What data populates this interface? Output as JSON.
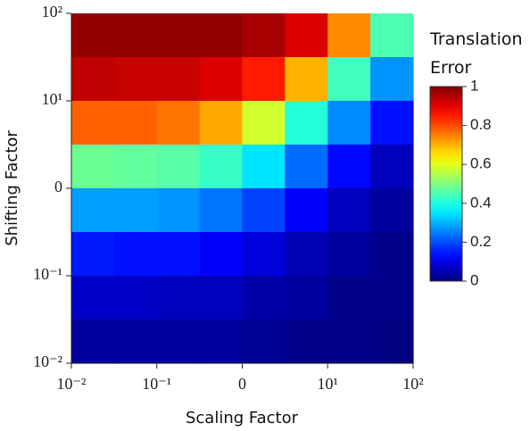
{
  "chart_data": {
    "type": "heatmap",
    "xlabel": "Scaling Factor",
    "ylabel": "Shifting Factor",
    "colorbar_label": "Translation Error",
    "colormap": "jet",
    "x": [
      -1.75,
      -1.25,
      -0.75,
      -0.25,
      0.25,
      0.75,
      1.25,
      1.75
    ],
    "y": [
      1.75,
      1.25,
      0.75,
      0.25,
      -0.25,
      -0.75,
      -1.25,
      -1.75
    ],
    "z": [
      [
        0.98,
        0.98,
        0.98,
        0.98,
        0.96,
        0.91,
        0.74,
        0.45
      ],
      [
        0.94,
        0.93,
        0.93,
        0.91,
        0.85,
        0.7,
        0.44,
        0.27
      ],
      [
        0.78,
        0.78,
        0.76,
        0.71,
        0.58,
        0.41,
        0.26,
        0.14
      ],
      [
        0.48,
        0.47,
        0.46,
        0.43,
        0.35,
        0.23,
        0.13,
        0.06
      ],
      [
        0.28,
        0.28,
        0.27,
        0.24,
        0.19,
        0.12,
        0.06,
        0.03
      ],
      [
        0.15,
        0.14,
        0.14,
        0.12,
        0.09,
        0.05,
        0.03,
        0.01
      ],
      [
        0.07,
        0.07,
        0.06,
        0.06,
        0.04,
        0.03,
        0.01,
        0.01
      ],
      [
        0.03,
        0.03,
        0.03,
        0.03,
        0.02,
        0.01,
        0.01,
        0.0
      ]
    ],
    "xlim": [
      -2,
      2
    ],
    "ylim": [
      -2,
      2
    ],
    "xticks": [
      {
        "value": -2,
        "label": "10⁻²"
      },
      {
        "value": -1,
        "label": "10⁻¹"
      },
      0,
      {
        "value": 1,
        "label": "10¹"
      },
      {
        "value": 2,
        "label": "10²"
      }
    ],
    "yticks": [
      {
        "value": -2,
        "label": "10⁻²"
      },
      {
        "value": -1,
        "label": "10⁻¹"
      },
      0,
      {
        "value": 1,
        "label": "10¹"
      },
      {
        "value": 2,
        "label": "10²"
      }
    ],
    "clim": [
      0,
      1
    ],
    "cticks": [
      0,
      0.2,
      0.4,
      0.6,
      0.8,
      1
    ]
  }
}
